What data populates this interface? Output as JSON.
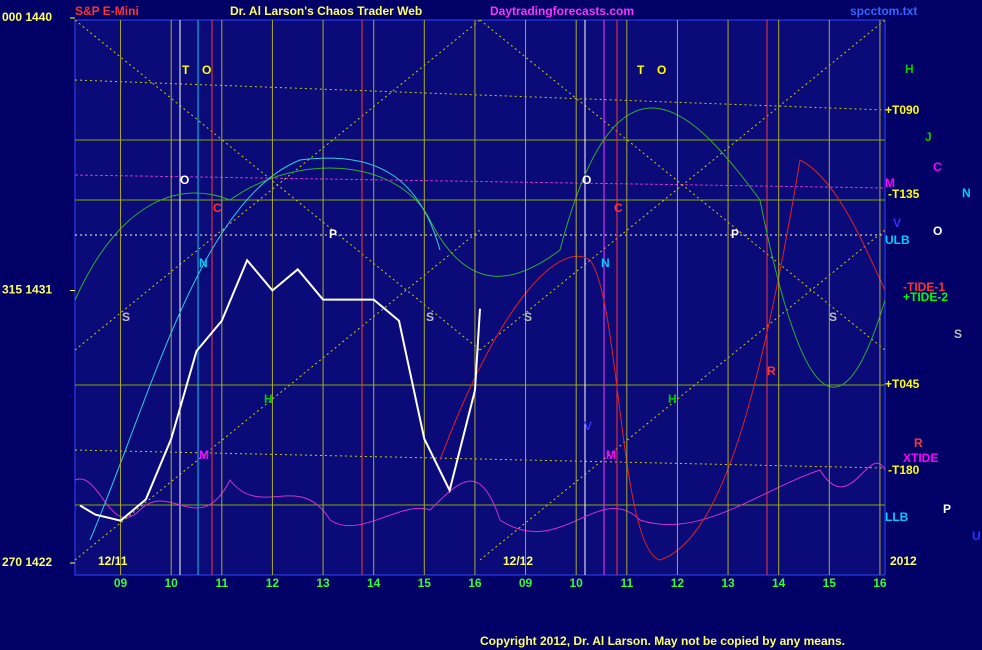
{
  "chart_data": {
    "type": "line",
    "title": "Dr. Al Larson's Chaos Trader Web",
    "instrument": "S&P E-Mini",
    "site": "Daytradingforecasts.com",
    "file": "spcctom.txt",
    "copyright": "Copyright 2012, Dr. Al Larson. May not be copied by any means.",
    "dates": [
      "12/11",
      "12/12",
      "2012"
    ],
    "x": [
      0.2,
      0.5,
      1,
      1.5,
      2,
      2.5,
      3,
      3.5,
      4,
      4.5,
      5,
      5.5,
      6,
      6.5,
      7,
      7.5,
      8,
      8.1
    ],
    "values": [
      1423.9,
      1423.6,
      1423.4,
      1424.1,
      1426.1,
      1429.0,
      1430.0,
      1432.0,
      1431.0,
      1431.7,
      1430.7,
      1430.7,
      1430.7,
      1430.0,
      1426.1,
      1424.4,
      1427.7,
      1430.4
    ],
    "color": "#ffffff",
    "xlim": [
      0.1,
      16.1
    ],
    "xticks": [
      {
        "value": 1,
        "label": "09"
      },
      {
        "value": 2,
        "label": "10"
      },
      {
        "value": 3,
        "label": "11"
      },
      {
        "value": 4,
        "label": "12"
      },
      {
        "value": 5,
        "label": "13"
      },
      {
        "value": 6,
        "label": "14"
      },
      {
        "value": 7,
        "label": "15"
      },
      {
        "value": 8,
        "label": "16"
      },
      {
        "value": 9,
        "label": "09"
      },
      {
        "value": 10,
        "label": "10"
      },
      {
        "value": 11,
        "label": "11"
      },
      {
        "value": 12,
        "label": "12"
      },
      {
        "value": 13,
        "label": "13"
      },
      {
        "value": 14,
        "label": "14"
      },
      {
        "value": 15,
        "label": "15"
      },
      {
        "value": 16,
        "label": "16"
      }
    ],
    "ylim": [
      1422,
      1440
    ],
    "yticks": [
      {
        "value": 1440,
        "label": "000 1440"
      },
      {
        "value": 1431,
        "label": "315 1431"
      },
      {
        "value": 1422,
        "label": "270 1422"
      }
    ],
    "annotations": [
      {
        "text": "H",
        "color": "#00cc00"
      },
      {
        "text": "+T090",
        "color": "#ffff00"
      },
      {
        "text": "J",
        "color": "#00cc00"
      },
      {
        "text": "C",
        "color": "#ff00ff"
      },
      {
        "text": "M",
        "color": "#ff00ff"
      },
      {
        "text": "-T135",
        "color": "#ffff00"
      },
      {
        "text": "N",
        "color": "#00ccff"
      },
      {
        "text": "V",
        "color": "#3333ff"
      },
      {
        "text": "ULB",
        "color": "#00ccff"
      },
      {
        "text": "O",
        "color": "#ffffff"
      },
      {
        "text": "-TIDE-1",
        "color": "#ff3333"
      },
      {
        "text": "+TIDE-2",
        "color": "#00ff00"
      },
      {
        "text": "S",
        "color": "#bbbbbb"
      },
      {
        "text": "+T045",
        "color": "#ffff00"
      },
      {
        "text": "R",
        "color": "#ff3333"
      },
      {
        "text": "XTIDE",
        "color": "#ff00ff"
      },
      {
        "text": "-T180",
        "color": "#ffff00"
      },
      {
        "text": "LLB",
        "color": "#00ccff"
      },
      {
        "text": "P",
        "color": "#ffffff"
      },
      {
        "text": "U",
        "color": "#3333ff"
      },
      {
        "text": "T",
        "color": "#ffff00"
      },
      {
        "text": "O",
        "color": "#ffff00"
      },
      {
        "text": "O",
        "color": "#ffffff"
      },
      {
        "text": "C",
        "color": "#ff3333"
      },
      {
        "text": "N",
        "color": "#00ccff"
      },
      {
        "text": "P",
        "color": "#ffffff"
      },
      {
        "text": "S",
        "color": "#bbbbbb"
      },
      {
        "text": "S",
        "color": "#bbbbbb"
      },
      {
        "text": "H",
        "color": "#00cc00"
      },
      {
        "text": "M",
        "color": "#ff00ff"
      },
      {
        "text": "T",
        "color": "#ffff00"
      },
      {
        "text": "O",
        "color": "#ffff00"
      },
      {
        "text": "O",
        "color": "#ffffff"
      },
      {
        "text": "C",
        "color": "#ff3333"
      },
      {
        "text": "N",
        "color": "#00ccff"
      },
      {
        "text": "P",
        "color": "#ffffff"
      },
      {
        "text": "S",
        "color": "#bbbbbb"
      },
      {
        "text": "S",
        "color": "#bbbbbb"
      },
      {
        "text": "H",
        "color": "#00cc00"
      },
      {
        "text": "M",
        "color": "#ff00ff"
      },
      {
        "text": "R",
        "color": "#ff3333"
      },
      {
        "text": "V",
        "color": "#3333ff"
      }
    ]
  }
}
